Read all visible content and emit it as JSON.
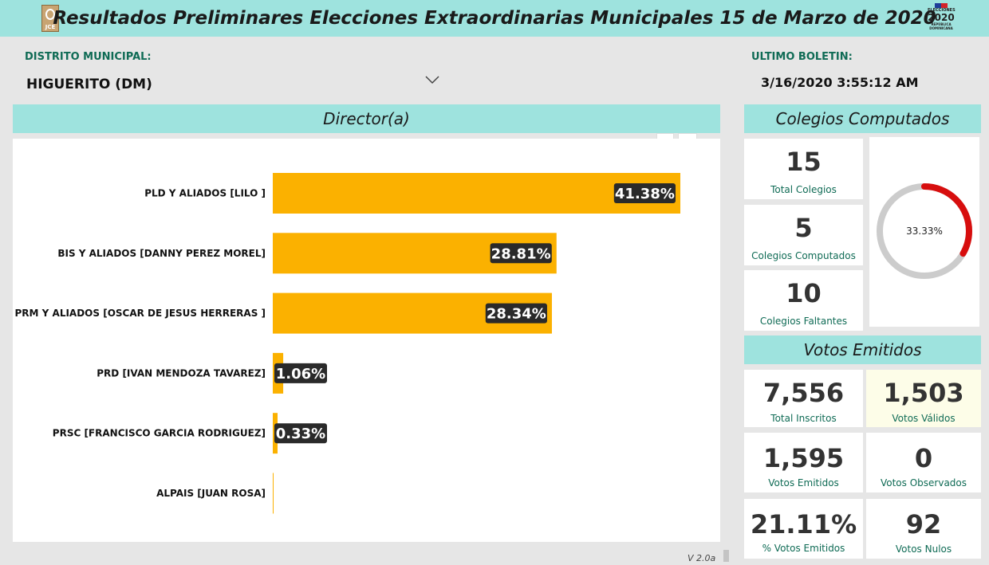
{
  "header": {
    "title": "Resultados Preliminares Elecciones Extraordinarias Municipales 15 de Marzo de 2020",
    "left_logo_text": "JCE",
    "right_logo_line1": "ELECCIONES",
    "right_logo_line2": "2020",
    "right_logo_line3": "REPÚBLICA DOMINICANA"
  },
  "filters": {
    "district_label": "DISTRITO MUNICIPAL:",
    "district_value": "HIGUERITO (DM)",
    "bulletin_label": "ULTIMO BOLETIN:",
    "bulletin_value": "3/16/2020 3:55:12 AM"
  },
  "chart_panel": {
    "title": "Director(a)"
  },
  "chart_data": {
    "type": "bar",
    "orientation": "horizontal",
    "categories": [
      "PLD Y ALIADOS [LILO ]",
      "BIS Y ALIADOS [DANNY PEREZ MOREL]",
      "PRM Y ALIADOS [OSCAR DE JESUS HERRERAS ]",
      "PRD [IVAN MENDOZA TAVAREZ]",
      "PRSC [FRANCISCO GARCIA RODRIGUEZ]",
      "ALPAIS [JUAN ROSA]"
    ],
    "values": [
      41.38,
      28.81,
      28.34,
      1.06,
      0.33,
      0
    ],
    "data_labels": [
      "41.38%",
      "28.81%",
      "28.34%",
      "1.06%",
      "0.33%",
      ""
    ],
    "xlim": [
      0,
      41.38
    ],
    "bar_color": "#fbb100",
    "label_bg": "#2a2a2a"
  },
  "colegios": {
    "title": "Colegios Computados",
    "total_value": "15",
    "total_caption": "Total Colegios",
    "computed_value": "5",
    "computed_caption": "Colegios Computados",
    "missing_value": "10",
    "missing_caption": "Colegios Faltantes",
    "gauge_label": "33.33%",
    "gauge_fraction": 0.3333,
    "gauge_color": "#d70e0e",
    "gauge_track_color": "#cccccc"
  },
  "votos": {
    "title": "Votos Emitidos",
    "inscritos_value": "7,556",
    "inscritos_caption": "Total Inscritos",
    "validos_value": "1,503",
    "validos_caption": "Votos Válidos",
    "emitidos_value": "1,595",
    "emitidos_caption": "Votos Emitidos",
    "observados_value": "0",
    "observados_caption": "Votos Observados",
    "pct_emitidos_value": "21.11%",
    "pct_emitidos_caption": "% Votos Emitidos",
    "nulos_value": "92",
    "nulos_caption": "Votos Nulos"
  },
  "footer": {
    "version": "V 2.0a"
  }
}
